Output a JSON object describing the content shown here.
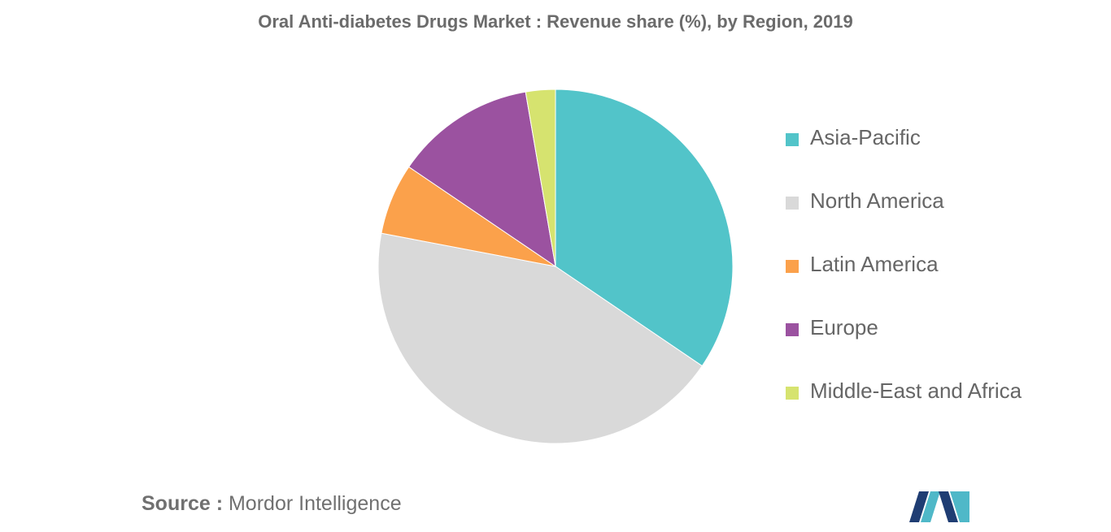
{
  "chart_data": {
    "type": "pie",
    "title": "Oral Anti-diabetes Drugs Market : Revenue share (%), by Region, 2019",
    "categories": [
      "Asia-Pacific",
      "North America",
      "Latin America",
      "Europe",
      "Middle-East and Africa"
    ],
    "values": [
      34.5,
      43.5,
      6.5,
      12.8,
      2.7
    ],
    "colors": [
      "#52c4c9",
      "#d9d9d9",
      "#fba14b",
      "#9b52a0",
      "#d6e36f"
    ],
    "legend_position": "right"
  },
  "source": {
    "label": "Source :",
    "text": "Mordor Intelligence"
  },
  "logo": {
    "colors": [
      "#1f3d73",
      "#4fb8c8"
    ]
  }
}
